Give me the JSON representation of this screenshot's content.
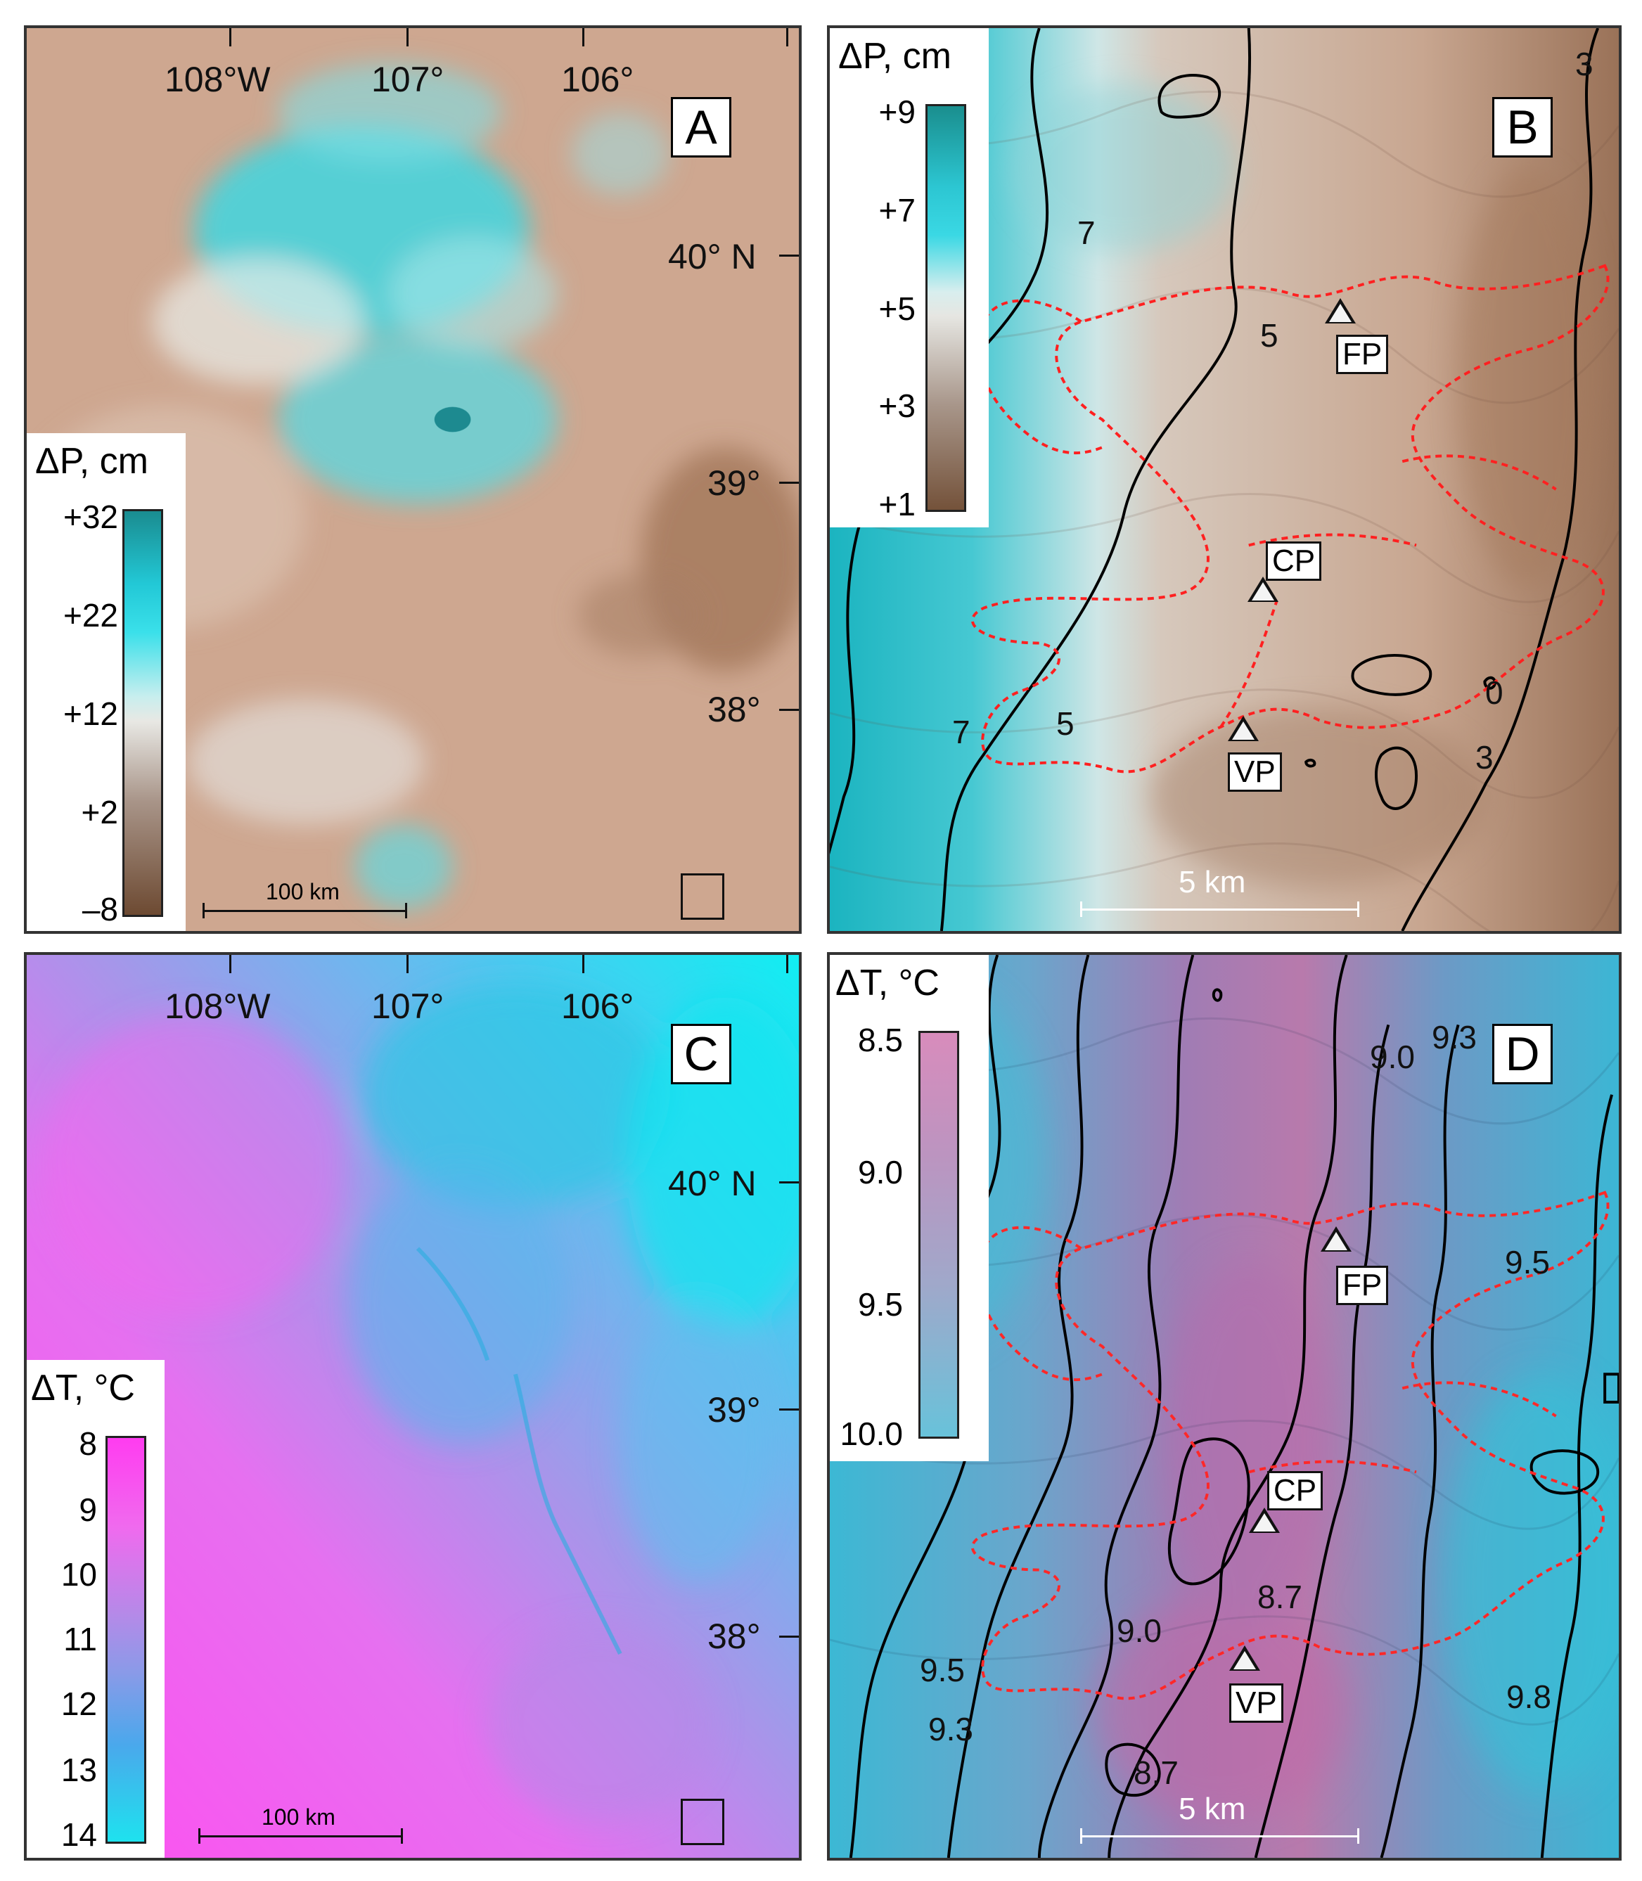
{
  "panels": {
    "a": {
      "letter": "A",
      "lon_labels": [
        "108°W",
        "107°",
        "106°"
      ],
      "lat_labels": [
        "40° N",
        "39°",
        "38°"
      ],
      "legend": {
        "title": "ΔP, cm",
        "values": [
          "+32",
          "+22",
          "+12",
          "+2",
          "–8"
        ]
      },
      "scale": "100 km",
      "colors": {
        "low": "#7a5236",
        "mid": "#d2b09c",
        "high": "#2ad6dc"
      }
    },
    "b": {
      "letter": "B",
      "legend": {
        "title": "ΔP, cm",
        "values": [
          "+9",
          "+7",
          "+5",
          "+3",
          "+1"
        ]
      },
      "contour_labels": [
        "7",
        "5",
        "7",
        "5",
        "3",
        "3",
        "0"
      ],
      "sites": [
        "FP",
        "CP",
        "VP"
      ],
      "scale": "5 km"
    },
    "c": {
      "letter": "C",
      "lon_labels": [
        "108°W",
        "107°",
        "106°"
      ],
      "lat_labels": [
        "40° N",
        "39°",
        "38°"
      ],
      "legend": {
        "title": "ΔT, °C",
        "values": [
          "8",
          "9",
          "10",
          "11",
          "12",
          "13",
          "14"
        ]
      },
      "scale": "100 km",
      "colors": {
        "warm": "#ff59f0",
        "mid": "#a08ee8",
        "cool": "#18e8f0"
      }
    },
    "d": {
      "letter": "D",
      "legend": {
        "title": "ΔT, °C",
        "values": [
          "8.5",
          "9.0",
          "9.5",
          "10.0"
        ]
      },
      "contour_labels": [
        "9.0",
        "9.3",
        "9.5",
        "8.7",
        "9.0",
        "9.5",
        "9.3",
        "8.7",
        "9.8"
      ],
      "sites": [
        "FP",
        "CP",
        "VP"
      ],
      "scale": "5 km"
    }
  }
}
